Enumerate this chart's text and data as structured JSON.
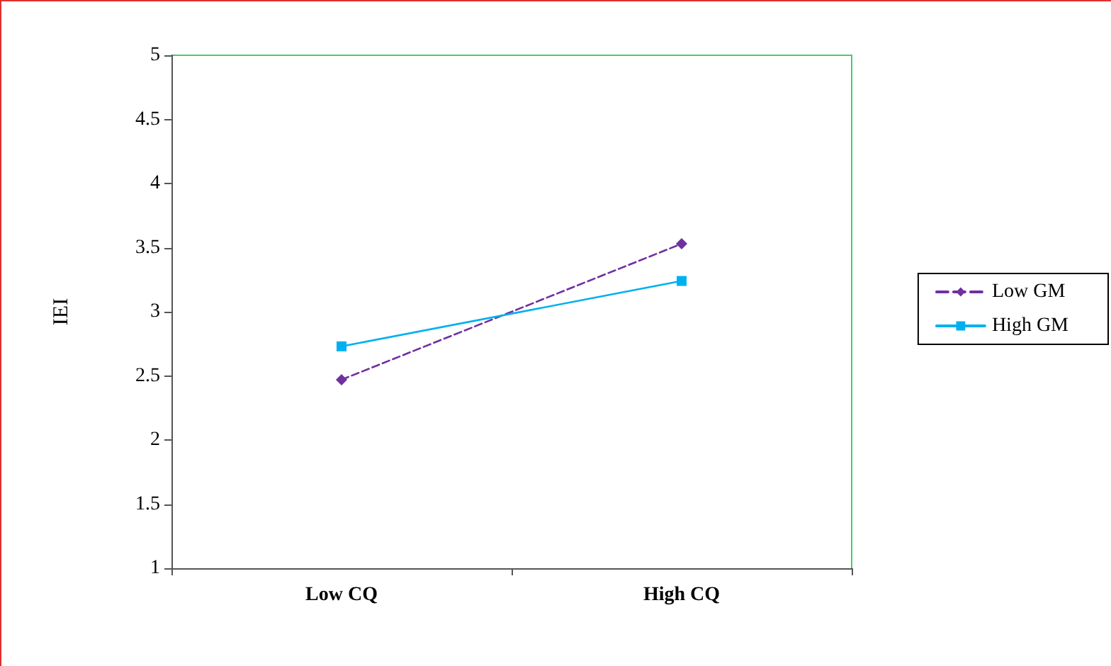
{
  "chart_data": {
    "type": "line",
    "ylabel": "IEI",
    "categories": [
      "Low CQ",
      "High CQ"
    ],
    "series": [
      {
        "name": "Low GM",
        "color": "#7030a0",
        "values": [
          2.47,
          3.53
        ],
        "marker": "diamond",
        "line_style": "dashed"
      },
      {
        "name": "High GM",
        "color": "#00b0f0",
        "values": [
          2.73,
          3.24
        ],
        "marker": "square",
        "line_style": "solid"
      }
    ],
    "ylim": [
      1,
      5
    ],
    "yticks": [
      1,
      1.5,
      2,
      2.5,
      3,
      3.5,
      4,
      4.5,
      5
    ],
    "grid": false,
    "legend": "right"
  }
}
